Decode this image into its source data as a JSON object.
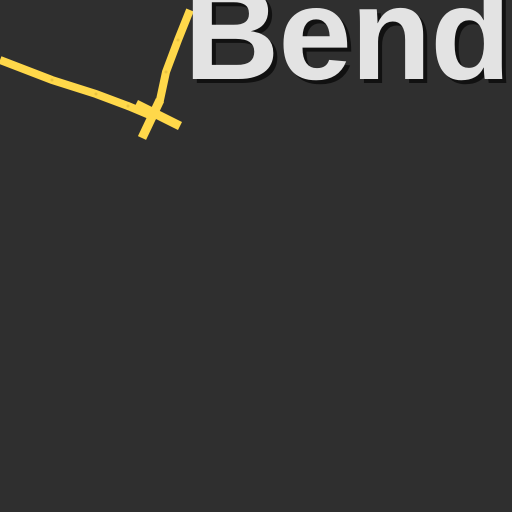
{
  "map": {
    "place_label": "Bend",
    "background_color": "#2f2f2f",
    "road_color": "#ffd84a",
    "road_casing_color": "#e9c23f",
    "label_color": "#e3e3e3",
    "label_shadow_color": "#111111"
  }
}
